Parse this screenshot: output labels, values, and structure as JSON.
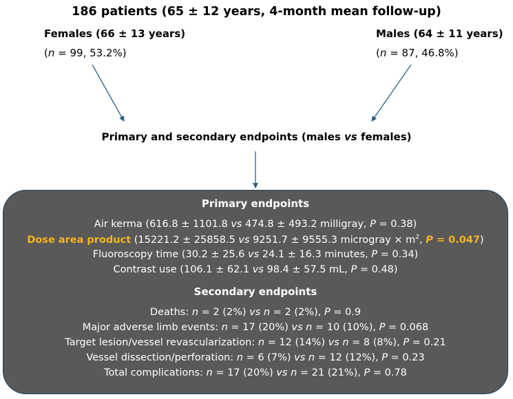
{
  "title": "186 patients (65 ± 12 years, 4-month mean follow-up)",
  "females": {
    "label": "Females (66 ± 13 years)",
    "n_label": "n",
    "n_rest": " = 99, 53.2%)"
  },
  "males": {
    "label": "Males (64 ± 11 years)",
    "n_label": "n",
    "n_rest": " = 87, 46.8%)"
  },
  "comparison": {
    "pre": "Primary and secondary endpoints (males ",
    "vs": "vs",
    "post": " females)"
  },
  "primary": {
    "heading": "Primary endpoints",
    "air_kerma": {
      "a": "Air kerma (616.8 ± 1101.8 ",
      "vs": "vs",
      "b": " 474.8 ± 493.2 milligray, ",
      "p": "P",
      "c": " = 0.38)"
    },
    "dap": {
      "name": "Dose area product",
      "a": " (15221.2 ± 25858.5 ",
      "vs": "vs",
      "b": " 9251.7 ± 9555.3 microgray × m",
      "sup": "2",
      "c": ", ",
      "p": "P",
      "p_val": " = 0.047",
      "close": ")"
    },
    "fluoro": {
      "a": "Fluoroscopy time (30.2 ± 25.6 ",
      "vs": "vs",
      "b": " 24.1 ± 16.3 minutes, ",
      "p": "P",
      "c": " = 0.34)"
    },
    "contrast": {
      "a": "Contrast use (106.1 ± 62.1 ",
      "vs": "vs",
      "b": " 98.4 ± 57.5 mL, ",
      "p": "P",
      "c": " = 0.48)"
    }
  },
  "secondary": {
    "heading": "Secondary endpoints",
    "deaths": {
      "a": "Deaths: ",
      "n1": "n",
      "b": " = 2 (2%) ",
      "vs": "vs",
      "n2": "n",
      "c": " = 2 (2%), ",
      "p": "P",
      "d": " = 0.9"
    },
    "male": {
      "a": "Major adverse limb events: ",
      "n1": "n",
      "b": " = 17 (20%) ",
      "vs": "vs",
      "n2": "n",
      "c": " = 10 (10%), ",
      "p": "P",
      "d": " = 0.068"
    },
    "tlr": {
      "a": "Target lesion/vessel revascularization: ",
      "n1": "n",
      "b": " = 12 (14%) ",
      "vs": "vs",
      "n2": "n",
      "c": " = 8 (8%), ",
      "p": "P",
      "d": " = 0.21"
    },
    "dissection": {
      "a": "Vessel dissection/perforation: ",
      "n1": "n",
      "b": " = 6 (7%) ",
      "vs": "vs",
      "n2": "n",
      "c": " = 12 (12%), ",
      "p": "P",
      "d": " = 0.23"
    },
    "total": {
      "a": "Total complications: ",
      "n1": "n",
      "b": " = 17 (20%) ",
      "vs": "vs",
      "n2": "n",
      "c": " = 21 (21%), ",
      "p": "P",
      "d": " = 0.78"
    }
  },
  "colors": {
    "panel": "#595959",
    "highlight": "#f5b321",
    "arrow": "#2e5f80"
  }
}
